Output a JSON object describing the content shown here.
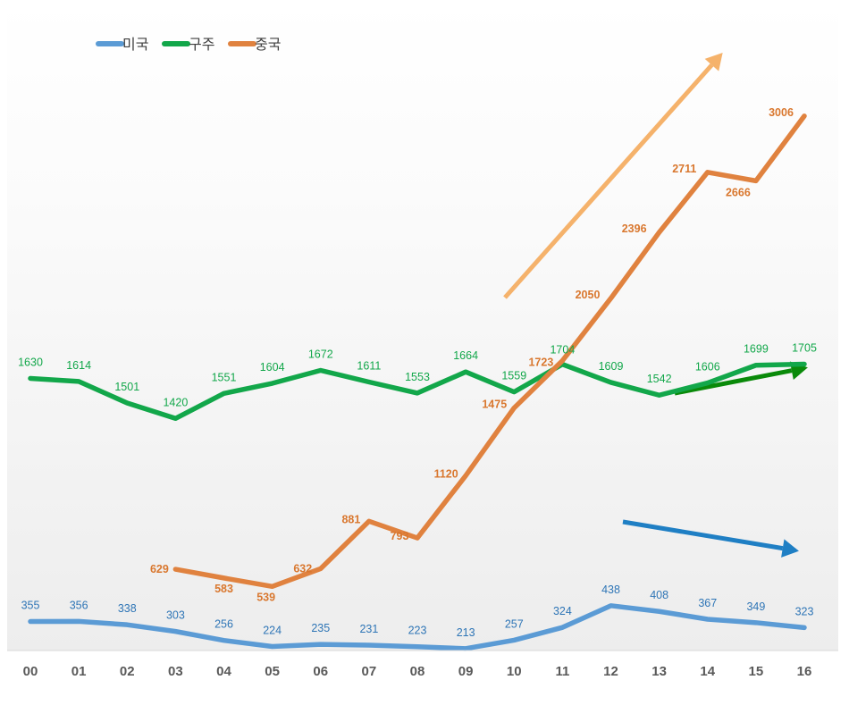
{
  "chart_data": {
    "type": "line",
    "title": "",
    "xlabel": "",
    "ylabel": "",
    "ylim": [
      0,
      3200
    ],
    "grid": false,
    "legend_position": "top-left",
    "categories": [
      "00",
      "01",
      "02",
      "03",
      "04",
      "05",
      "06",
      "07",
      "08",
      "09",
      "10",
      "11",
      "12",
      "13",
      "14",
      "15",
      "16"
    ],
    "series": [
      {
        "name": "미국",
        "color": "#5b9bd5",
        "label_color": "#2e75b6",
        "values": [
          355,
          356,
          338,
          303,
          256,
          224,
          235,
          231,
          223,
          213,
          257,
          324,
          438,
          408,
          367,
          349,
          323
        ]
      },
      {
        "name": "구주",
        "color": "#12a74a",
        "label_color": "#12a74a",
        "values": [
          1630,
          1614,
          1501,
          1420,
          1551,
          1604,
          1672,
          1611,
          1553,
          1664,
          1559,
          1704,
          1609,
          1542,
          1606,
          1699,
          1705
        ]
      },
      {
        "name": "중국",
        "color": "#e0823f",
        "label_color": "#d9772e",
        "values": [
          null,
          null,
          null,
          629,
          583,
          539,
          632,
          881,
          793,
          1120,
          1475,
          1723,
          2050,
          2396,
          2711,
          2666,
          3006
        ]
      }
    ],
    "trend_arrows": [
      {
        "name": "china-trend-arrow",
        "color": "#f5b26b"
      },
      {
        "name": "europe-trend-arrow",
        "color": "#0a8a0a"
      },
      {
        "name": "us-trend-arrow",
        "color": "#1f7fc4"
      }
    ]
  }
}
